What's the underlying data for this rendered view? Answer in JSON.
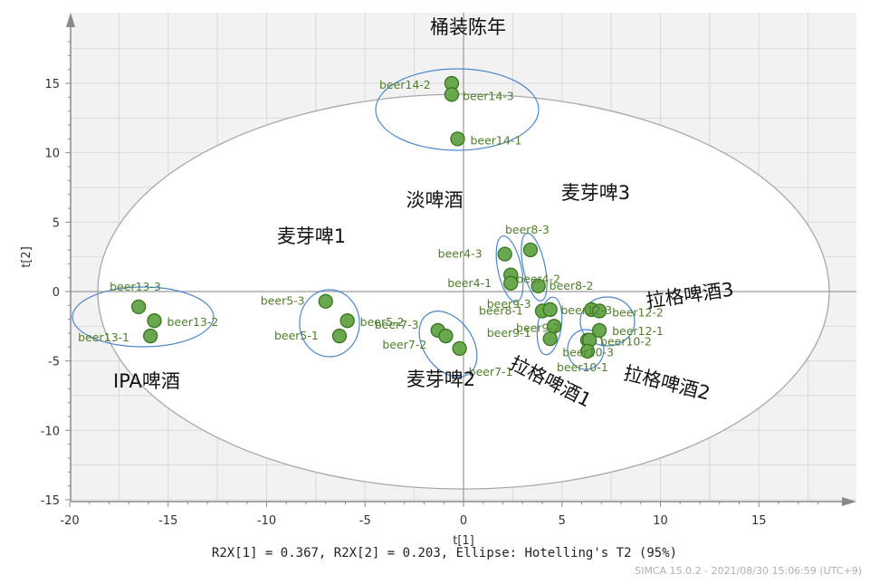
{
  "chart_data": {
    "type": "scatter",
    "xlabel": "t[1]",
    "ylabel": "t[2]",
    "xlim": [
      -20,
      20
    ],
    "ylim": [
      -15,
      19
    ],
    "x_ticks": [
      "-20",
      "-15",
      "-10",
      "-5",
      "0",
      "5",
      "10",
      "15"
    ],
    "y_ticks": [
      "-15",
      "-10",
      "-5",
      "0",
      "5",
      "10",
      "15"
    ],
    "grid": true,
    "colors": {
      "point_fill": "#6aa84f",
      "point_stroke": "#38761d",
      "point_label": "#4f7f2a",
      "group_ellipse": "#4a86d0",
      "hotelling_ellipse": "#a8a8a8",
      "grid": "#d9d9d9",
      "axis": "#8a8a8a"
    },
    "points": [
      {
        "label": "beer14-2",
        "x": -0.6,
        "y": 15.0
      },
      {
        "label": "beer14-3",
        "x": -0.6,
        "y": 14.2
      },
      {
        "label": "beer14-1",
        "x": -0.3,
        "y": 11.0
      },
      {
        "label": "beer13-3",
        "x": -16.5,
        "y": -1.1
      },
      {
        "label": "beer13-2",
        "x": -15.7,
        "y": -2.1
      },
      {
        "label": "beer13-1",
        "x": -15.9,
        "y": -3.2
      },
      {
        "label": "beer5-3",
        "x": -7.0,
        "y": -0.7
      },
      {
        "label": "beer5-2",
        "x": -5.9,
        "y": -2.1
      },
      {
        "label": "beer5-1",
        "x": -6.3,
        "y": -3.2
      },
      {
        "label": "beer7-3",
        "x": -1.3,
        "y": -2.8
      },
      {
        "label": "beer7-2",
        "x": -0.9,
        "y": -3.2
      },
      {
        "label": "beer7-1",
        "x": -0.2,
        "y": -4.1
      },
      {
        "label": "beer8-3",
        "x": 3.4,
        "y": 3.0
      },
      {
        "label": "beer4-3",
        "x": 2.1,
        "y": 2.7
      },
      {
        "label": "beer4-2",
        "x": 2.4,
        "y": 1.2
      },
      {
        "label": "beer4-1",
        "x": 2.4,
        "y": 0.6
      },
      {
        "label": "beer8-2",
        "x": 3.8,
        "y": 0.4
      },
      {
        "label": "beer8-1",
        "x": 4.0,
        "y": -1.4
      },
      {
        "label": "beer9-3",
        "x": 4.4,
        "y": -1.3
      },
      {
        "label": "beer9-2",
        "x": 4.6,
        "y": -2.5
      },
      {
        "label": "beer9-1",
        "x": 4.4,
        "y": -3.4
      },
      {
        "label": "beer12-3",
        "x": 6.5,
        "y": -1.3
      },
      {
        "label": "beer12-2",
        "x": 6.9,
        "y": -1.4
      },
      {
        "label": "beer12-1",
        "x": 6.9,
        "y": -2.8
      },
      {
        "label": "beer10-2",
        "x": 6.3,
        "y": -3.5
      },
      {
        "label": "beer10-3",
        "x": 6.4,
        "y": -3.5
      },
      {
        "label": "beer10-1",
        "x": 6.3,
        "y": -4.3
      }
    ],
    "label_offsets_note": "",
    "group_labels": [
      {
        "text": "桶装陈年"
      },
      {
        "text": "淡啤酒"
      },
      {
        "text": "麦芽啤3"
      },
      {
        "text": "麦芽啤1"
      },
      {
        "text": "拉格啤酒3"
      },
      {
        "text": "IPA啤酒"
      },
      {
        "text": "麦芽啤2"
      },
      {
        "text": "拉格啤酒1"
      },
      {
        "text": "拉格啤酒2"
      }
    ],
    "footer": {
      "caption": "R2X[1] = 0.367, R2X[2] = 0.203, Ellipse: Hotelling's T2 (95%)",
      "stamp": "SIMCA 15.0.2 - 2021/08/30 15:06:59 (UTC+9)"
    }
  }
}
